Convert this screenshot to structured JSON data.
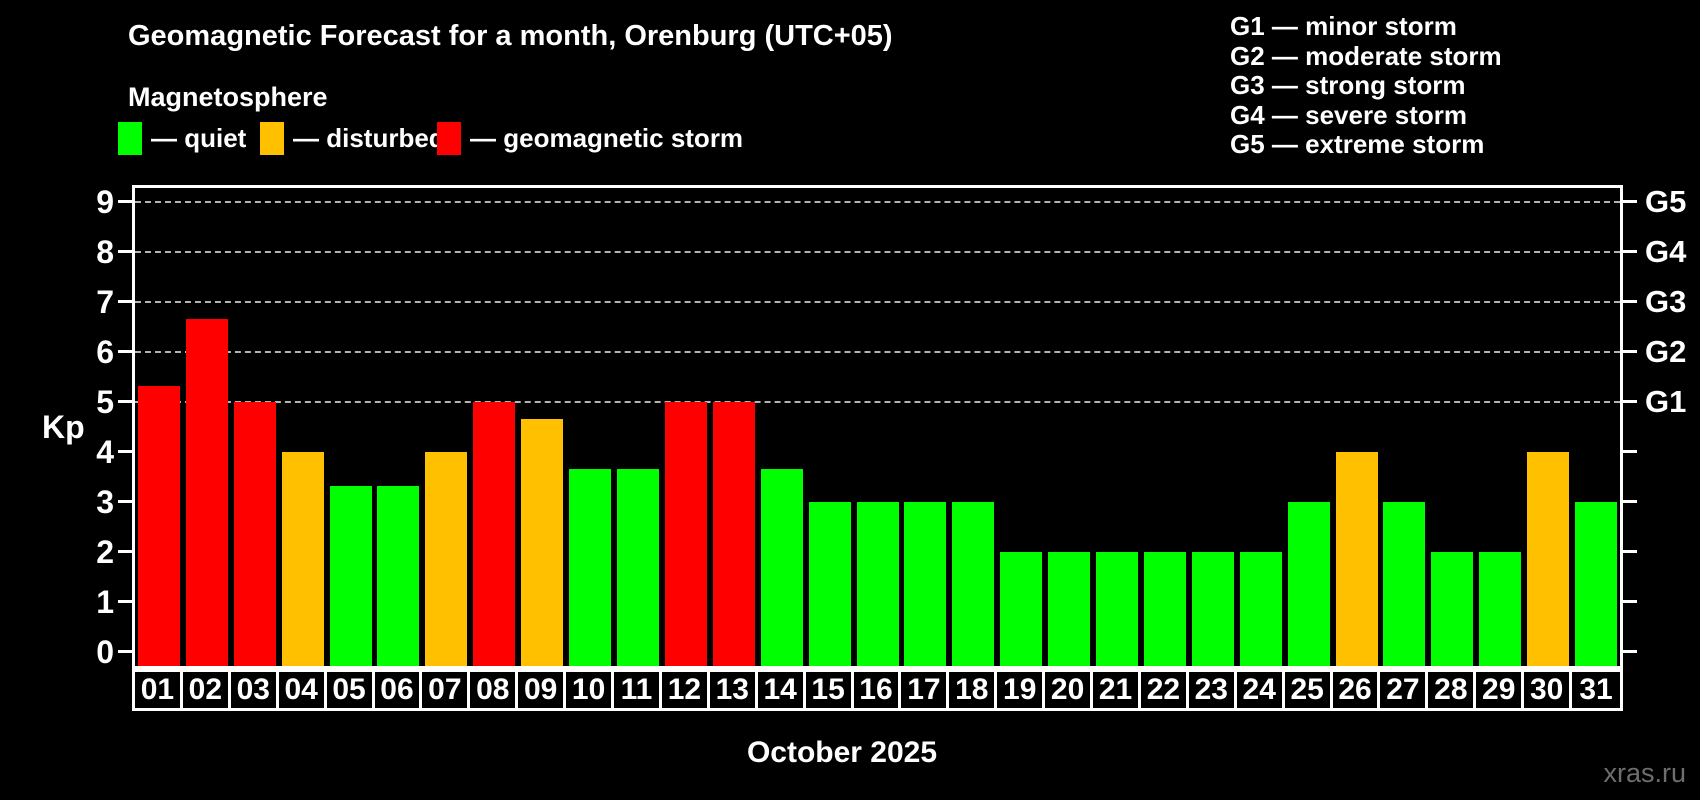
{
  "title": "Geomagnetic Forecast for a month, Orenburg (UTC+05)",
  "subtitle": "Magnetosphere",
  "legend": {
    "items": [
      {
        "key": "quiet",
        "label": "— quiet",
        "color": "#00ff00",
        "x": 0
      },
      {
        "key": "disturbed",
        "label": "— disturbed",
        "color": "#ffc000",
        "x": 142
      },
      {
        "key": "storm",
        "label": "— geomagnetic storm",
        "color": "#ff0000",
        "x": 319
      }
    ]
  },
  "g_legend": [
    "G1 — minor storm",
    "G2 — moderate storm",
    "G3 — strong storm",
    "G4 — severe storm",
    "G5 — extreme storm"
  ],
  "watermark": "xras.ru",
  "chart_data": {
    "type": "bar",
    "title": "Geomagnetic Forecast for a month, Orenburg (UTC+05)",
    "xlabel": "October 2025",
    "ylabel": "Kp",
    "ylim": [
      0,
      9
    ],
    "y_ticks": [
      0,
      1,
      2,
      3,
      4,
      5,
      6,
      7,
      8,
      9
    ],
    "gridlines_at": [
      5,
      6,
      7,
      8,
      9
    ],
    "grid": "dashed horizontal at storm levels only",
    "legend_position": "top-left",
    "right_axis_labels": [
      {
        "value": 5,
        "label": "G1"
      },
      {
        "value": 6,
        "label": "G2"
      },
      {
        "value": 7,
        "label": "G3"
      },
      {
        "value": 8,
        "label": "G4"
      },
      {
        "value": 9,
        "label": "G5"
      }
    ],
    "categories": [
      "01",
      "02",
      "03",
      "04",
      "05",
      "06",
      "07",
      "08",
      "09",
      "10",
      "11",
      "12",
      "13",
      "14",
      "15",
      "16",
      "17",
      "18",
      "19",
      "20",
      "21",
      "22",
      "23",
      "24",
      "25",
      "26",
      "27",
      "28",
      "29",
      "30",
      "31"
    ],
    "values": [
      5.33,
      6.67,
      5,
      4,
      3.33,
      3.33,
      4,
      5,
      4.67,
      3.67,
      3.67,
      5,
      5,
      3.67,
      3,
      3,
      3,
      3,
      2,
      2,
      2,
      2,
      2,
      2,
      3,
      4,
      3,
      2,
      2,
      4,
      3
    ],
    "statuses": [
      "storm",
      "storm",
      "storm",
      "disturbed",
      "quiet",
      "quiet",
      "disturbed",
      "storm",
      "disturbed",
      "quiet",
      "quiet",
      "storm",
      "storm",
      "quiet",
      "quiet",
      "quiet",
      "quiet",
      "quiet",
      "quiet",
      "quiet",
      "quiet",
      "quiet",
      "quiet",
      "quiet",
      "quiet",
      "disturbed",
      "quiet",
      "quiet",
      "quiet",
      "disturbed",
      "quiet"
    ],
    "status_colors": {
      "quiet": "#00ff00",
      "disturbed": "#ffc000",
      "storm": "#ff0000"
    }
  }
}
